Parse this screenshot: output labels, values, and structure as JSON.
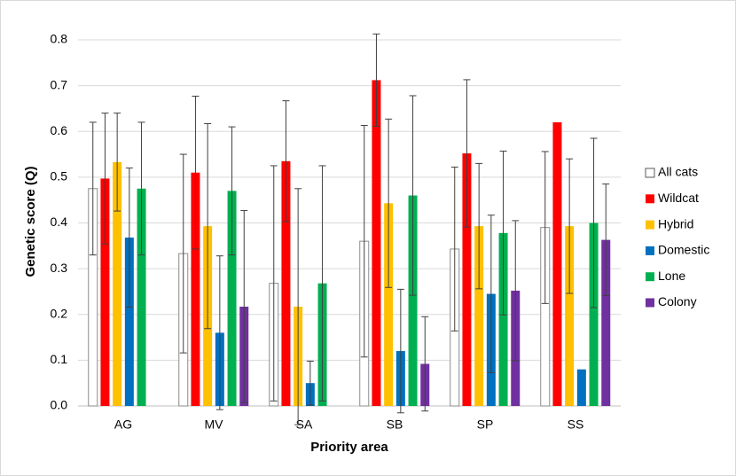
{
  "chart_data": {
    "type": "bar",
    "x_label": "Priority area",
    "y_label": "Genetic score (Q)",
    "categories": [
      "AG",
      "MV",
      "SA",
      "SB",
      "SP",
      "SS"
    ],
    "series": [
      {
        "name": "All cats",
        "color": "#ffffff",
        "values": [
          0.475,
          0.333,
          0.268,
          0.36,
          0.343,
          0.39
        ],
        "errors": [
          0.145,
          0.217,
          0.257,
          0.253,
          0.179,
          0.166
        ]
      },
      {
        "name": "Wildcat",
        "color": "#ff0000",
        "values": [
          0.497,
          0.51,
          0.535,
          0.712,
          0.552,
          0.62
        ],
        "errors": [
          0.143,
          0.167,
          0.132,
          0.101,
          0.161,
          null
        ]
      },
      {
        "name": "Hybrid",
        "color": "#ffc000",
        "values": [
          0.533,
          0.393,
          0.217,
          0.443,
          0.393,
          0.393
        ],
        "errors": [
          0.107,
          0.224,
          0.258,
          0.184,
          0.137,
          0.147
        ]
      },
      {
        "name": "Domestic",
        "color": "#0070c0",
        "values": [
          0.368,
          0.16,
          0.05,
          0.12,
          0.245,
          0.08
        ],
        "errors": [
          0.152,
          0.168,
          0.048,
          0.135,
          0.172,
          null
        ]
      },
      {
        "name": "Lone",
        "color": "#00b050",
        "values": [
          0.475,
          0.47,
          0.268,
          0.46,
          0.378,
          0.4
        ],
        "errors": [
          0.145,
          0.14,
          0.257,
          0.218,
          0.179,
          0.185
        ]
      },
      {
        "name": "Colony",
        "color": "#7030a0",
        "values": [
          null,
          0.217,
          null,
          0.092,
          0.252,
          0.363
        ],
        "errors": [
          null,
          0.21,
          null,
          0.103,
          0.153,
          0.122
        ]
      }
    ],
    "ylim": [
      0,
      0.8
    ],
    "yticks": [
      {
        "value": 0,
        "label": "0.0"
      },
      0.1,
      0.2,
      0.3,
      0.4,
      0.5,
      0.6,
      0.7,
      0.8
    ],
    "grid": true,
    "legend": "right"
  }
}
